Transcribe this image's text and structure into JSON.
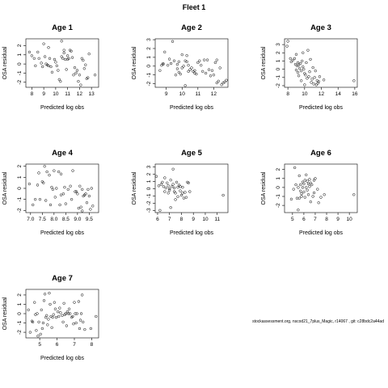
{
  "figure": {
    "title": "Fleet 1",
    "footer": "stockassessment.org, nscod21_7plus_Magic, r14067 , git: c28bdc2a44ad"
  },
  "chart_data": [
    {
      "type": "scatter",
      "title": "Age 1",
      "xlabel": "Predicted log obs",
      "ylabel": "OSA residual",
      "xlim": [
        7.5,
        13.6
      ],
      "ylim": [
        -2.55,
        2.75
      ],
      "xticks": [
        8,
        9,
        10,
        11,
        12,
        13
      ],
      "yticks": [
        -2,
        -1,
        0,
        1,
        2
      ],
      "points": [
        [
          7.8,
          1.3
        ],
        [
          8.0,
          0.9
        ],
        [
          8.2,
          0.6
        ],
        [
          8.3,
          -0.2
        ],
        [
          8.5,
          1.3
        ],
        [
          8.6,
          0.6
        ],
        [
          8.8,
          0.1
        ],
        [
          8.9,
          -0.3
        ],
        [
          9.0,
          2.2
        ],
        [
          9.1,
          0.8
        ],
        [
          9.2,
          0.0
        ],
        [
          9.3,
          -0.1
        ],
        [
          9.4,
          1.8
        ],
        [
          9.4,
          -0.2
        ],
        [
          9.5,
          0.6
        ],
        [
          9.6,
          -0.3
        ],
        [
          9.7,
          -0.9
        ],
        [
          9.9,
          0.5
        ],
        [
          10.0,
          0.2
        ],
        [
          10.1,
          -0.2
        ],
        [
          10.2,
          -0.7
        ],
        [
          10.3,
          -1.7
        ],
        [
          10.4,
          -1.9
        ],
        [
          10.5,
          2.5
        ],
        [
          10.5,
          0.8
        ],
        [
          10.6,
          0.6
        ],
        [
          10.7,
          1.5
        ],
        [
          10.7,
          1.2
        ],
        [
          10.8,
          0.5
        ],
        [
          10.9,
          -0.6
        ],
        [
          11.0,
          0.9
        ],
        [
          11.0,
          0.5
        ],
        [
          11.1,
          0.6
        ],
        [
          11.2,
          1.5
        ],
        [
          11.3,
          1.4
        ],
        [
          11.4,
          0.7
        ],
        [
          11.5,
          -1.2
        ],
        [
          11.6,
          -0.4
        ],
        [
          11.7,
          -1.0
        ],
        [
          11.8,
          -0.7
        ],
        [
          11.9,
          -1.9
        ],
        [
          12.0,
          -1.2
        ],
        [
          12.1,
          -2.3
        ],
        [
          12.2,
          0.6
        ],
        [
          12.3,
          0.4
        ],
        [
          12.4,
          -0.5
        ],
        [
          12.5,
          -0.1
        ],
        [
          12.6,
          -1.6
        ],
        [
          12.7,
          -1.5
        ],
        [
          12.8,
          1.1
        ],
        [
          13.3,
          -1.2
        ]
      ]
    },
    {
      "type": "scatter",
      "title": "Age 2",
      "xlabel": "Predicted log obs",
      "ylabel": "OSA residual",
      "xlim": [
        8.3,
        12.9
      ],
      "ylim": [
        -2.4,
        3.1
      ],
      "xticks": [
        9,
        10,
        11,
        12
      ],
      "yticks": [
        -2,
        -1,
        0,
        1,
        2,
        3
      ],
      "points": [
        [
          8.6,
          -0.5
        ],
        [
          8.7,
          0.1
        ],
        [
          8.8,
          0.3
        ],
        [
          8.8,
          0.2
        ],
        [
          8.9,
          1.6
        ],
        [
          9.1,
          0.1
        ],
        [
          9.2,
          0.8
        ],
        [
          9.3,
          0.3
        ],
        [
          9.4,
          2.8
        ],
        [
          9.5,
          0.6
        ],
        [
          9.6,
          -1.0
        ],
        [
          9.7,
          0.2
        ],
        [
          9.7,
          -0.3
        ],
        [
          9.8,
          -0.7
        ],
        [
          9.8,
          0.5
        ],
        [
          9.9,
          -0.9
        ],
        [
          10.0,
          1.3
        ],
        [
          10.0,
          -0.2
        ],
        [
          10.1,
          0.0
        ],
        [
          10.2,
          0.6
        ],
        [
          10.3,
          1.2
        ],
        [
          10.3,
          0.5
        ],
        [
          10.4,
          0.1
        ],
        [
          10.4,
          -0.6
        ],
        [
          10.5,
          -0.4
        ],
        [
          10.6,
          -0.2
        ],
        [
          10.7,
          -0.6
        ],
        [
          10.8,
          -0.8
        ],
        [
          10.8,
          -0.5
        ],
        [
          10.9,
          -0.9
        ],
        [
          11.0,
          0.4
        ],
        [
          11.1,
          0.6
        ],
        [
          11.2,
          0.1
        ],
        [
          11.3,
          -0.6
        ],
        [
          11.4,
          0.7
        ],
        [
          11.5,
          -0.8
        ],
        [
          11.6,
          0.7
        ],
        [
          11.7,
          -0.4
        ],
        [
          11.8,
          -1.1
        ],
        [
          11.9,
          -0.5
        ],
        [
          12.0,
          -1.0
        ],
        [
          12.1,
          0.4
        ],
        [
          12.2,
          0.7
        ],
        [
          12.2,
          -1.9
        ],
        [
          12.3,
          -1.7
        ],
        [
          12.4,
          -0.2
        ],
        [
          12.5,
          -2.1
        ],
        [
          12.6,
          -1.9
        ],
        [
          12.7,
          -1.8
        ],
        [
          12.8,
          -1.6
        ],
        [
          10.2,
          -2.2
        ]
      ]
    },
    {
      "type": "scatter",
      "title": "Age 3",
      "xlabel": "Predicted log obs",
      "ylabel": "OSA residual",
      "xlim": [
        7.6,
        16.3
      ],
      "ylim": [
        -2.2,
        3.7
      ],
      "xticks": [
        8,
        10,
        12,
        14,
        16
      ],
      "yticks": [
        -2,
        -1,
        0,
        1,
        2,
        3
      ],
      "points": [
        [
          7.9,
          2.8
        ],
        [
          8.0,
          3.4
        ],
        [
          8.3,
          1.3
        ],
        [
          8.4,
          0.9
        ],
        [
          8.6,
          1.1
        ],
        [
          8.8,
          1.3
        ],
        [
          8.9,
          0.6
        ],
        [
          9.0,
          -0.1
        ],
        [
          9.0,
          1.8
        ],
        [
          9.1,
          0.4
        ],
        [
          9.2,
          -0.4
        ],
        [
          9.2,
          0.8
        ],
        [
          9.3,
          -0.8
        ],
        [
          9.3,
          0.5
        ],
        [
          9.4,
          0.1
        ],
        [
          9.5,
          0.7
        ],
        [
          9.6,
          -0.2
        ],
        [
          9.6,
          -1.4
        ],
        [
          9.7,
          1.0
        ],
        [
          9.8,
          2.0
        ],
        [
          9.8,
          0.3
        ],
        [
          9.9,
          0.0
        ],
        [
          10.0,
          -0.5
        ],
        [
          10.0,
          -1.9
        ],
        [
          10.1,
          -0.7
        ],
        [
          10.2,
          0.8
        ],
        [
          10.3,
          -1.1
        ],
        [
          10.4,
          2.3
        ],
        [
          10.5,
          -0.9
        ],
        [
          10.6,
          -0.3
        ],
        [
          10.7,
          1.2
        ],
        [
          10.8,
          -1.6
        ],
        [
          10.9,
          -1.2
        ],
        [
          11.0,
          0.2
        ],
        [
          11.1,
          -1.8
        ],
        [
          11.2,
          -1.0
        ],
        [
          11.3,
          -0.2
        ],
        [
          11.4,
          -1.9
        ],
        [
          11.5,
          -1.4
        ],
        [
          11.6,
          -1.7
        ],
        [
          11.7,
          -1.5
        ],
        [
          11.8,
          -0.9
        ],
        [
          12.3,
          -1.3
        ],
        [
          15.9,
          -1.4
        ]
      ]
    },
    {
      "type": "scatter",
      "title": "Age 4",
      "xlabel": "Predicted log obs",
      "ylabel": "OSA residual",
      "xlim": [
        6.8,
        9.9
      ],
      "ylim": [
        -2.2,
        2.2
      ],
      "xticks": [
        7.0,
        7.5,
        8.0,
        8.5,
        9.0,
        9.5
      ],
      "yticks": [
        -2,
        -1,
        0,
        1,
        2
      ],
      "points": [
        [
          6.95,
          0.4
        ],
        [
          7.1,
          -1.5
        ],
        [
          7.2,
          -1.0
        ],
        [
          7.3,
          0.3
        ],
        [
          7.35,
          1.4
        ],
        [
          7.4,
          -1.0
        ],
        [
          7.5,
          0.6
        ],
        [
          7.55,
          0.5
        ],
        [
          7.6,
          2.0
        ],
        [
          7.65,
          -1.1
        ],
        [
          7.7,
          1.5
        ],
        [
          7.8,
          1.2
        ],
        [
          7.85,
          -1.5
        ],
        [
          7.9,
          0.1
        ],
        [
          7.95,
          -0.1
        ],
        [
          8.0,
          1.6
        ],
        [
          8.05,
          -0.8
        ],
        [
          8.1,
          0.0
        ],
        [
          8.2,
          1.5
        ],
        [
          8.25,
          -1.5
        ],
        [
          8.3,
          -0.6
        ],
        [
          8.3,
          1.3
        ],
        [
          8.4,
          -0.5
        ],
        [
          8.45,
          0.1
        ],
        [
          8.5,
          -1.4
        ],
        [
          8.6,
          -0.1
        ],
        [
          8.7,
          0.2
        ],
        [
          8.75,
          -1.0
        ],
        [
          8.8,
          1.6
        ],
        [
          8.9,
          -0.3
        ],
        [
          8.95,
          -0.3
        ],
        [
          9.0,
          -0.5
        ],
        [
          9.05,
          -1.8
        ],
        [
          9.1,
          0.2
        ],
        [
          9.15,
          -1.7
        ],
        [
          9.2,
          -0.1
        ],
        [
          9.25,
          -0.7
        ],
        [
          9.3,
          -0.6
        ],
        [
          9.35,
          -0.5
        ],
        [
          9.4,
          -1.3
        ],
        [
          9.45,
          -0.1
        ],
        [
          9.5,
          -0.7
        ],
        [
          9.55,
          -1.9
        ],
        [
          9.6,
          0.0
        ],
        [
          9.65,
          -1.6
        ],
        [
          9.2,
          -2.05
        ]
      ]
    },
    {
      "type": "scatter",
      "title": "Age 5",
      "xlabel": "Predicted log obs",
      "ylabel": "OSA residual",
      "xlim": [
        5.8,
        11.9
      ],
      "ylim": [
        -3.3,
        3.4
      ],
      "xticks": [
        6,
        7,
        8,
        9,
        10,
        11
      ],
      "yticks": [
        -3,
        -2,
        -1,
        0,
        1,
        2,
        3
      ],
      "points": [
        [
          5.9,
          1.7
        ],
        [
          6.1,
          0.4
        ],
        [
          6.2,
          -3.0
        ],
        [
          6.3,
          0.6
        ],
        [
          6.4,
          0.9
        ],
        [
          6.5,
          0.3
        ],
        [
          6.6,
          -0.4
        ],
        [
          6.6,
          1.5
        ],
        [
          6.7,
          0.1
        ],
        [
          6.8,
          0.8
        ],
        [
          6.9,
          -0.6
        ],
        [
          6.9,
          0.4
        ],
        [
          7.0,
          0.0
        ],
        [
          7.0,
          -0.2
        ],
        [
          7.1,
          1.2
        ],
        [
          7.1,
          -2.6
        ],
        [
          7.2,
          0.3
        ],
        [
          7.3,
          0.6
        ],
        [
          7.3,
          2.7
        ],
        [
          7.4,
          -0.4
        ],
        [
          7.4,
          0.1
        ],
        [
          7.5,
          -0.6
        ],
        [
          7.5,
          -1.5
        ],
        [
          7.6,
          0.9
        ],
        [
          7.7,
          0.2
        ],
        [
          7.7,
          -1.1
        ],
        [
          7.8,
          0.5
        ],
        [
          7.9,
          -0.3
        ],
        [
          7.9,
          0.3
        ],
        [
          8.0,
          -0.9
        ],
        [
          8.1,
          -0.6
        ],
        [
          8.1,
          0.2
        ],
        [
          8.2,
          -1.3
        ],
        [
          8.3,
          -0.5
        ],
        [
          8.4,
          -1.2
        ],
        [
          8.5,
          0.9
        ],
        [
          8.6,
          0.8
        ],
        [
          8.7,
          -0.4
        ],
        [
          11.5,
          -0.9
        ]
      ]
    },
    {
      "type": "scatter",
      "title": "Age 6",
      "xlabel": "Predicted log obs",
      "ylabel": "OSA residual",
      "xlim": [
        4.3,
        10.7
      ],
      "ylim": [
        -2.8,
        2.6
      ],
      "xticks": [
        5,
        6,
        7,
        8,
        9,
        10
      ],
      "yticks": [
        -2,
        -1,
        0,
        1,
        2
      ],
      "points": [
        [
          4.9,
          -1.3
        ],
        [
          5.1,
          -0.2
        ],
        [
          5.2,
          2.2
        ],
        [
          5.3,
          0.3
        ],
        [
          5.4,
          -1.2
        ],
        [
          5.5,
          0.0
        ],
        [
          5.5,
          -2.5
        ],
        [
          5.6,
          -1.2
        ],
        [
          5.6,
          1.3
        ],
        [
          5.7,
          -0.4
        ],
        [
          5.7,
          0.3
        ],
        [
          5.8,
          -0.7
        ],
        [
          5.8,
          -1.0
        ],
        [
          5.9,
          0.0
        ],
        [
          5.9,
          0.6
        ],
        [
          6.0,
          0.4
        ],
        [
          6.0,
          -0.5
        ],
        [
          6.1,
          -1.1
        ],
        [
          6.1,
          0.8
        ],
        [
          6.2,
          1.4
        ],
        [
          6.2,
          0.0
        ],
        [
          6.3,
          0.7
        ],
        [
          6.3,
          -0.3
        ],
        [
          6.4,
          0.4
        ],
        [
          6.4,
          -0.8
        ],
        [
          6.5,
          0.1
        ],
        [
          6.5,
          0.9
        ],
        [
          6.6,
          -1.6
        ],
        [
          6.6,
          0.5
        ],
        [
          6.7,
          0.3
        ],
        [
          6.8,
          -1.0
        ],
        [
          6.9,
          0.8
        ],
        [
          6.9,
          -0.6
        ],
        [
          7.0,
          1.0
        ],
        [
          7.2,
          -0.2
        ],
        [
          7.3,
          -1.7
        ],
        [
          7.5,
          -1.1
        ],
        [
          7.8,
          -0.8
        ],
        [
          10.4,
          -0.8
        ]
      ]
    },
    {
      "type": "scatter",
      "title": "Age 7",
      "xlabel": "Predicted log obs",
      "ylabel": "OSA residual",
      "xlim": [
        4.2,
        8.4
      ],
      "ylim": [
        -2.6,
        2.6
      ],
      "xticks": [
        5,
        6,
        7,
        8
      ],
      "yticks": [
        -2,
        -1,
        0,
        1,
        2
      ],
      "points": [
        [
          4.35,
          0.4
        ],
        [
          4.45,
          -2.0
        ],
        [
          4.55,
          -0.8
        ],
        [
          4.6,
          -0.9
        ],
        [
          4.7,
          1.2
        ],
        [
          4.75,
          -0.1
        ],
        [
          4.8,
          -1.8
        ],
        [
          4.85,
          0.0
        ],
        [
          4.9,
          -2.4
        ],
        [
          4.95,
          -0.9
        ],
        [
          5.05,
          -2.2
        ],
        [
          5.1,
          0.4
        ],
        [
          5.15,
          -1.6
        ],
        [
          5.2,
          -1.0
        ],
        [
          5.25,
          1.4
        ],
        [
          5.3,
          2.1
        ],
        [
          5.35,
          -0.4
        ],
        [
          5.4,
          -0.2
        ],
        [
          5.45,
          -1.2
        ],
        [
          5.5,
          -0.6
        ],
        [
          5.55,
          2.2
        ],
        [
          5.6,
          1.0
        ],
        [
          5.65,
          -0.3
        ],
        [
          5.7,
          -1.5
        ],
        [
          5.75,
          -0.4
        ],
        [
          5.8,
          -0.1
        ],
        [
          5.85,
          1.2
        ],
        [
          5.9,
          0.5
        ],
        [
          5.95,
          -0.4
        ],
        [
          6.05,
          0.2
        ],
        [
          6.1,
          -0.3
        ],
        [
          6.15,
          0.6
        ],
        [
          6.2,
          0.1
        ],
        [
          6.3,
          -0.2
        ],
        [
          6.35,
          -0.9
        ],
        [
          6.4,
          1.1
        ],
        [
          6.45,
          -0.1
        ],
        [
          6.5,
          0.0
        ],
        [
          6.55,
          -1.3
        ],
        [
          6.6,
          0.2
        ],
        [
          6.65,
          0.0
        ],
        [
          6.7,
          0.5
        ],
        [
          6.75,
          0.0
        ],
        [
          6.85,
          -0.4
        ],
        [
          6.9,
          -0.3
        ],
        [
          6.95,
          -1.1
        ],
        [
          7.0,
          1.2
        ],
        [
          7.05,
          0.0
        ],
        [
          7.1,
          -1.0
        ],
        [
          7.15,
          0.0
        ],
        [
          7.25,
          1.3
        ],
        [
          7.3,
          -1.6
        ],
        [
          7.35,
          -0.7
        ],
        [
          7.4,
          0.0
        ],
        [
          7.45,
          2.0
        ],
        [
          7.5,
          -0.9
        ],
        [
          7.6,
          -1.7
        ],
        [
          7.95,
          -1.6
        ],
        [
          8.25,
          -0.3
        ]
      ]
    }
  ]
}
